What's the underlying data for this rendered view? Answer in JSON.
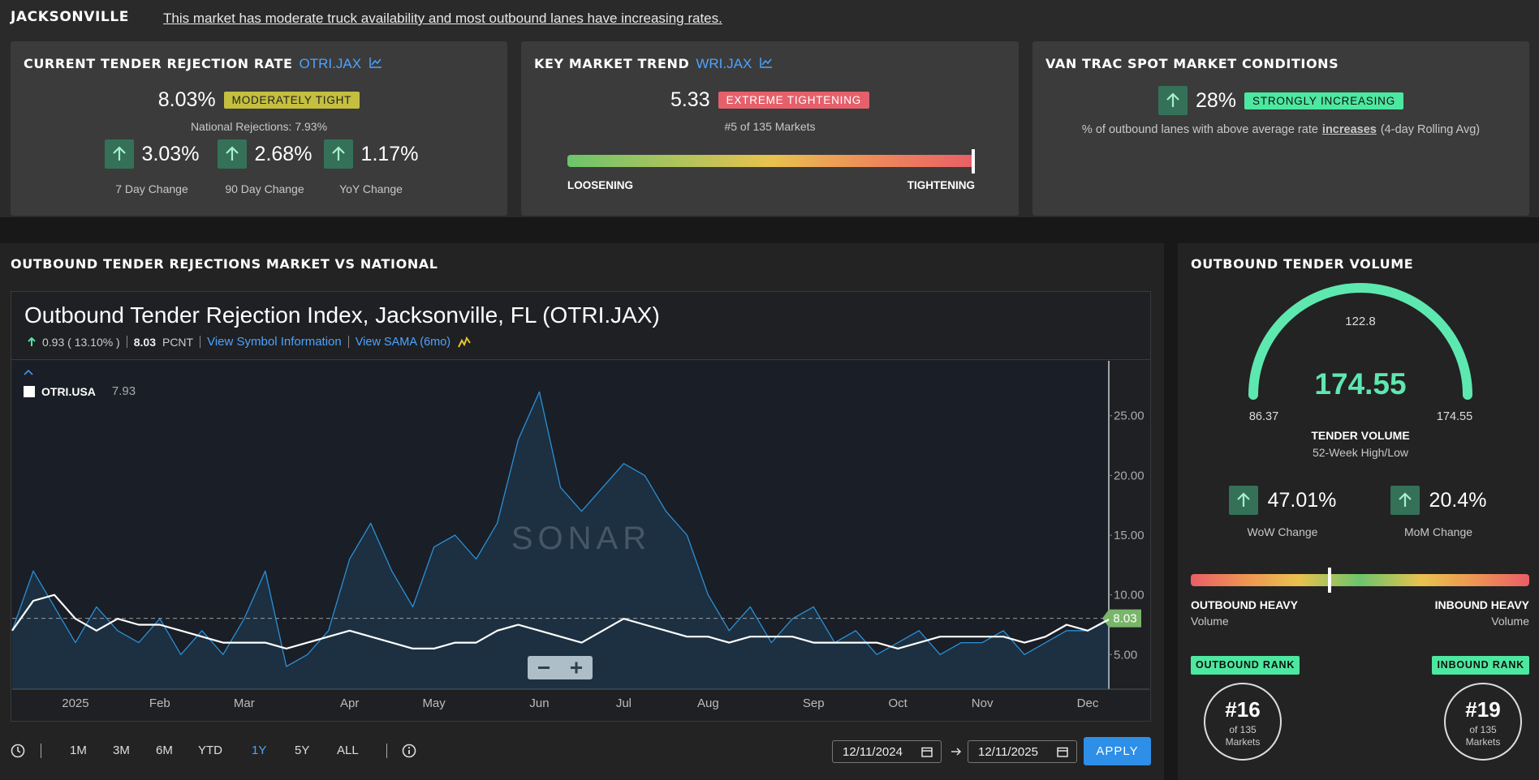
{
  "header": {
    "market": "JACKSONVILLE",
    "summary": "This market has moderate truck availability and most outbound lanes have increasing rates."
  },
  "rejection_card": {
    "title": "CURRENT TENDER REJECTION RATE",
    "symbol": "OTRI.JAX",
    "value": "8.03%",
    "badge": "MODERATELY TIGHT",
    "national": "National Rejections: 7.93%",
    "changes": [
      {
        "value": "3.03%",
        "label": "7 Day Change"
      },
      {
        "value": "2.68%",
        "label": "90 Day Change"
      },
      {
        "value": "1.17%",
        "label": "YoY Change"
      }
    ]
  },
  "trend_card": {
    "title": "KEY MARKET TREND",
    "symbol": "WRI.JAX",
    "value": "5.33",
    "badge": "EXTREME TIGHTENING",
    "rank": "#5 of 135 Markets",
    "low": "LOOSENING",
    "high": "TIGHTENING"
  },
  "van_card": {
    "title": "VAN TRAC SPOT MARKET CONDITIONS",
    "value": "28%",
    "badge": "STRONGLY INCREASING",
    "description": "% of outbound lanes with above average rate",
    "emphasis": "increases",
    "note": "(4-day Rolling Avg)"
  },
  "rejections_panel": {
    "title": "OUTBOUND TENDER REJECTIONS MARKET VS NATIONAL",
    "chart_title": "Outbound Tender Rejection Index, Jacksonville, FL (OTRI.JAX)",
    "change": "0.93 ( 13.10% )",
    "price": "8.03",
    "unit": "PCNT",
    "link_info": "View Symbol Information",
    "link_sama": "View SAMA (6mo)",
    "watermark": "SONAR",
    "ranges": [
      "1M",
      "3M",
      "6M",
      "YTD",
      "1Y",
      "5Y",
      "ALL"
    ],
    "active_range": 4,
    "start_date": "12/11/2024",
    "end_date": "12/11/2025",
    "apply": "APPLY"
  },
  "chart_data": {
    "type": "line",
    "categories": [
      null,
      null,
      null,
      "2025",
      null,
      null,
      null,
      "Feb",
      null,
      null,
      null,
      "Mar",
      null,
      null,
      null,
      null,
      "Apr",
      null,
      null,
      null,
      "May",
      null,
      null,
      null,
      null,
      "Jun",
      null,
      null,
      null,
      "Jul",
      null,
      null,
      null,
      "Aug",
      null,
      null,
      null,
      null,
      "Sep",
      null,
      null,
      null,
      "Oct",
      null,
      null,
      null,
      "Nov",
      null,
      null,
      null,
      null,
      "Dec",
      null
    ],
    "series": [
      {
        "color": "#2b8fd6",
        "area": true,
        "last_value_marker": true,
        "values": [
          7,
          12,
          9,
          6,
          9,
          7,
          6,
          8,
          5,
          7,
          5,
          8,
          12,
          4,
          5,
          7,
          13,
          16,
          12,
          9,
          14,
          15,
          13,
          16,
          23,
          27,
          19,
          17,
          19,
          21,
          20,
          17,
          15,
          10,
          7,
          9,
          6,
          8,
          9,
          6,
          7,
          5,
          6,
          7,
          5,
          6,
          6,
          7,
          5,
          6,
          7,
          7,
          8.03
        ]
      },
      {
        "name": "OTRI.USA",
        "color": "#ffffff",
        "values": [
          7,
          9.5,
          10,
          8,
          7,
          8,
          7.5,
          7.5,
          7,
          6.5,
          6,
          6,
          6,
          5.5,
          6,
          6.5,
          7,
          6.5,
          6,
          5.5,
          5.5,
          6,
          6,
          7,
          7.5,
          7,
          6.5,
          6,
          7,
          8,
          7.5,
          7,
          6.5,
          6.5,
          6,
          6.5,
          6.5,
          6.5,
          6,
          6,
          6,
          6,
          5.5,
          6,
          6.5,
          6.5,
          6.5,
          6.5,
          6,
          6.5,
          7.5,
          7,
          7.93
        ]
      }
    ],
    "ylim": [
      2.1,
      29.6
    ],
    "yticks": [
      {
        "value": 5,
        "label": "5.00"
      },
      {
        "value": 10,
        "label": "10.00"
      },
      {
        "value": 15,
        "label": "15.00"
      },
      {
        "value": 20,
        "label": "20.00"
      },
      {
        "value": 25,
        "label": "25.00"
      }
    ]
  },
  "volume_panel": {
    "title": "OUTBOUND TENDER VOLUME",
    "gauge": {
      "min": 86.37,
      "max": 174.55,
      "mid": 122.8,
      "value": 174.55,
      "label": "TENDER VOLUME",
      "sublabel": "52-Week High/Low",
      "color": "#5de8b0"
    },
    "changes": [
      {
        "value": "47.01%",
        "label": "WoW Change"
      },
      {
        "value": "20.4%",
        "label": "MoM Change"
      }
    ],
    "balance": {
      "left": "OUTBOUND HEAVY",
      "left_sub": "Volume",
      "right": "INBOUND HEAVY",
      "right_sub": "Volume"
    },
    "ranks": [
      {
        "label": "OUTBOUND RANK",
        "rank": "#16",
        "of": "of 135 Markets"
      },
      {
        "label": "INBOUND RANK",
        "rank": "#19",
        "of": "of 135 Markets"
      }
    ]
  }
}
